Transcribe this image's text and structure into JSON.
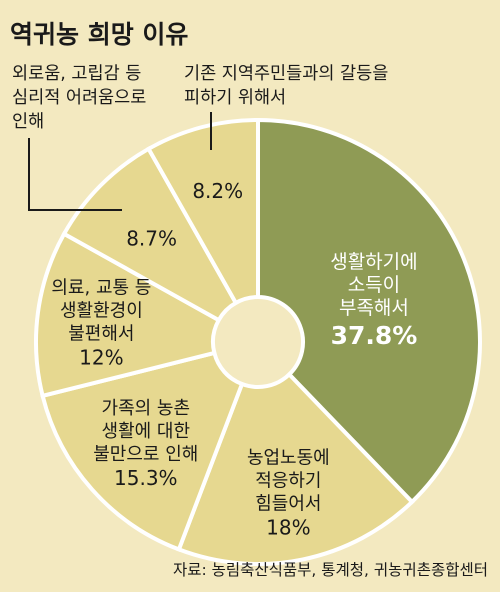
{
  "title": "역귀농 희망 이유",
  "source": "자료: 농림축산식품부, 통계청, 귀농귀촌종합센터",
  "colors": {
    "background": "#f3e9c0",
    "main_slice": "#8f9b55",
    "slice": "#e6d890",
    "separator": "#ffffff",
    "leader_line": "#1a1a1a"
  },
  "chart_data": {
    "type": "donut",
    "title": "역귀농 희망 이유",
    "unit": "%",
    "slices": [
      {
        "label": "생활하기에 소득이 부족해서",
        "lines": [
          "생활하기에",
          "소득이",
          "부족해서"
        ],
        "value": 37.8,
        "display": "37.8%"
      },
      {
        "label": "농업노동에 적응하기 힘들어서",
        "lines": [
          "농업노동에",
          "적응하기",
          "힘들어서"
        ],
        "value": 18,
        "display": "18%"
      },
      {
        "label": "가족의 농촌 생활에 대한 불만으로 인해",
        "lines": [
          "가족의 농촌",
          "생활에 대한",
          "불만으로 인해"
        ],
        "value": 15.3,
        "display": "15.3%"
      },
      {
        "label": "의료, 교통 등 생활환경이 불편해서",
        "lines": [
          "의료, 교통 등",
          "생활환경이",
          "불편해서"
        ],
        "value": 12,
        "display": "12%"
      },
      {
        "label": "외로움, 고립감 등 심리적 어려움으로 인해",
        "lines": [],
        "value": 8.7,
        "display": "8.7%"
      },
      {
        "label": "기존 지역주민들과의 갈등을 피하기 위해서",
        "lines": [],
        "value": 8.2,
        "display": "8.2%"
      }
    ],
    "annotations": [
      {
        "slice": 4,
        "lines": [
          "외로움, 고립감 등",
          "심리적 어려움으로",
          "인해"
        ]
      },
      {
        "slice": 5,
        "lines": [
          "기존 지역주민들과의 갈등을",
          "피하기 위해서"
        ]
      }
    ],
    "source": "자료: 농림축산식품부, 통계청, 귀농귀촌종합센터"
  }
}
